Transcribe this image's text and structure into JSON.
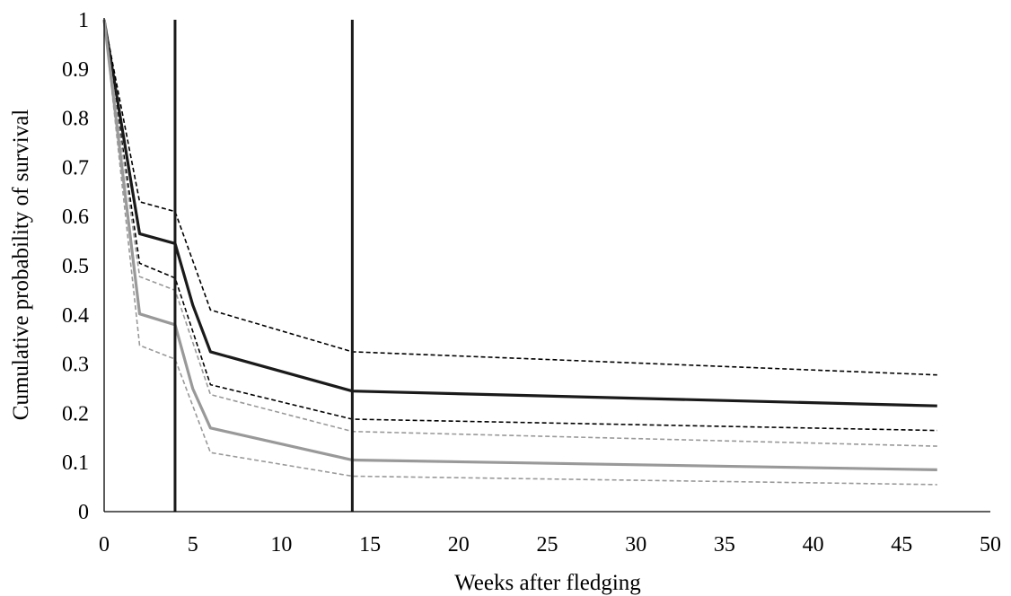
{
  "chart_data": {
    "type": "line",
    "title": "",
    "xlabel": "Weeks after fledging",
    "ylabel": "Cumulative probability of survival",
    "xlim": [
      0,
      50
    ],
    "ylim": [
      0,
      1
    ],
    "x_ticks": [
      0,
      5,
      10,
      15,
      20,
      25,
      30,
      35,
      40,
      45,
      50
    ],
    "y_ticks": [
      0,
      0.1,
      0.2,
      0.3,
      0.4,
      0.5,
      0.6,
      0.7,
      0.8,
      0.9,
      1
    ],
    "x_tick_labels": [
      "0",
      "5",
      "10",
      "15",
      "20",
      "25",
      "30",
      "35",
      "40",
      "45",
      "50"
    ],
    "y_tick_labels": [
      "0",
      "0.1",
      "0.2",
      "0.3",
      "0.4",
      "0.5",
      "0.6",
      "0.7",
      "0.8",
      "0.9",
      "1"
    ],
    "grid": false,
    "legend": "none",
    "vertical_lines": [
      4,
      14
    ],
    "series": [
      {
        "color": "#1a1a1a",
        "style": "solid",
        "x": [
          0,
          2,
          4,
          5,
          6,
          14,
          47
        ],
        "values": [
          1,
          0.565,
          0.545,
          0.42,
          0.325,
          0.245,
          0.215
        ]
      },
      {
        "color": "#000000",
        "style": "dashed",
        "x": [
          0,
          2,
          4,
          6,
          14,
          47
        ],
        "values": [
          1,
          0.63,
          0.61,
          0.41,
          0.325,
          0.278
        ]
      },
      {
        "color": "#000000",
        "style": "dashed",
        "x": [
          0,
          2,
          4,
          6,
          14,
          47
        ],
        "values": [
          1,
          0.505,
          0.475,
          0.258,
          0.188,
          0.165
        ]
      },
      {
        "color": "#999999",
        "style": "solid",
        "x": [
          0,
          2,
          4,
          5,
          6,
          14,
          47
        ],
        "values": [
          1,
          0.402,
          0.38,
          0.25,
          0.17,
          0.105,
          0.085
        ]
      },
      {
        "color": "#999999",
        "style": "dashed",
        "x": [
          0,
          2,
          4,
          6,
          14,
          47
        ],
        "values": [
          1,
          0.478,
          0.45,
          0.238,
          0.163,
          0.133
        ]
      },
      {
        "color": "#999999",
        "style": "dashed",
        "x": [
          0,
          2,
          4,
          6,
          14,
          47
        ],
        "values": [
          1,
          0.338,
          0.31,
          0.12,
          0.072,
          0.055
        ]
      }
    ]
  }
}
